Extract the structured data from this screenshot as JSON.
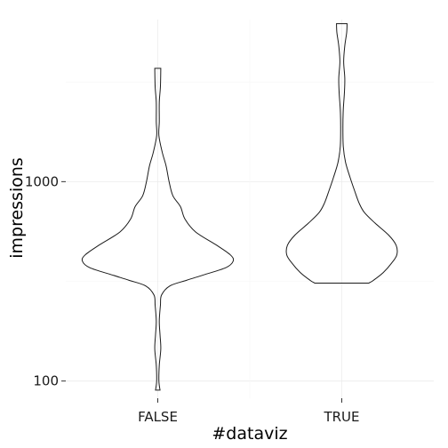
{
  "chart_data": {
    "type": "violin",
    "xlabel": "#dataviz",
    "ylabel": "impressions",
    "y_scale": "log10",
    "ylim": [
      82,
      6500
    ],
    "y_ticks": [
      100,
      1000
    ],
    "y_tick_labels": [
      "100",
      "1000"
    ],
    "categories": [
      "FALSE",
      "TRUE"
    ],
    "grid": true,
    "series": [
      {
        "category": "FALSE",
        "min": 90,
        "max": 3700,
        "density_profile": [
          {
            "y": 3700,
            "w": 0.04
          },
          {
            "y": 3000,
            "w": 0.035
          },
          {
            "y": 2500,
            "w": 0.02
          },
          {
            "y": 2000,
            "w": 0.02
          },
          {
            "y": 1700,
            "w": 0.015
          },
          {
            "y": 1400,
            "w": 0.06
          },
          {
            "y": 1200,
            "w": 0.11
          },
          {
            "y": 1000,
            "w": 0.15
          },
          {
            "y": 850,
            "w": 0.2
          },
          {
            "y": 750,
            "w": 0.3
          },
          {
            "y": 650,
            "w": 0.36
          },
          {
            "y": 560,
            "w": 0.5
          },
          {
            "y": 480,
            "w": 0.78
          },
          {
            "y": 430,
            "w": 0.96
          },
          {
            "y": 400,
            "w": 1.0
          },
          {
            "y": 370,
            "w": 0.9
          },
          {
            "y": 340,
            "w": 0.6
          },
          {
            "y": 320,
            "w": 0.38
          },
          {
            "y": 300,
            "w": 0.16
          },
          {
            "y": 270,
            "w": 0.05
          },
          {
            "y": 240,
            "w": 0.035
          },
          {
            "y": 200,
            "w": 0.02
          },
          {
            "y": 170,
            "w": 0.03
          },
          {
            "y": 145,
            "w": 0.04
          },
          {
            "y": 120,
            "w": 0.02
          },
          {
            "y": 100,
            "w": 0.015
          },
          {
            "y": 90,
            "w": 0.03
          }
        ]
      },
      {
        "category": "TRUE",
        "min": 310,
        "max": 6200,
        "density_profile": [
          {
            "y": 6200,
            "w": 0.07
          },
          {
            "y": 5600,
            "w": 0.065
          },
          {
            "y": 4800,
            "w": 0.04
          },
          {
            "y": 4000,
            "w": 0.025
          },
          {
            "y": 3300,
            "w": 0.04
          },
          {
            "y": 2800,
            "w": 0.035
          },
          {
            "y": 2300,
            "w": 0.02
          },
          {
            "y": 1900,
            "w": 0.015
          },
          {
            "y": 1500,
            "w": 0.02
          },
          {
            "y": 1250,
            "w": 0.05
          },
          {
            "y": 1050,
            "w": 0.11
          },
          {
            "y": 900,
            "w": 0.17
          },
          {
            "y": 780,
            "w": 0.23
          },
          {
            "y": 700,
            "w": 0.3
          },
          {
            "y": 620,
            "w": 0.44
          },
          {
            "y": 540,
            "w": 0.62
          },
          {
            "y": 480,
            "w": 0.72
          },
          {
            "y": 430,
            "w": 0.73
          },
          {
            "y": 390,
            "w": 0.66
          },
          {
            "y": 350,
            "w": 0.55
          },
          {
            "y": 320,
            "w": 0.42
          },
          {
            "y": 310,
            "w": 0.36
          }
        ]
      }
    ]
  }
}
